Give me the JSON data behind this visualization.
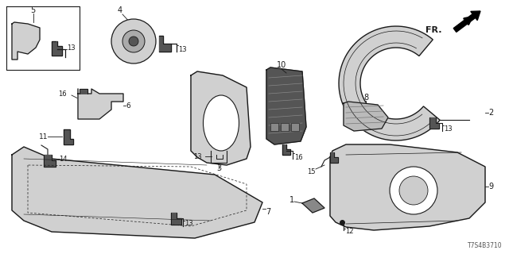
{
  "bg_color": "#ffffff",
  "line_color": "#1a1a1a",
  "diagram_code": "T7S4B3710",
  "gray_fill": "#d0d0d0",
  "dark_fill": "#555555"
}
